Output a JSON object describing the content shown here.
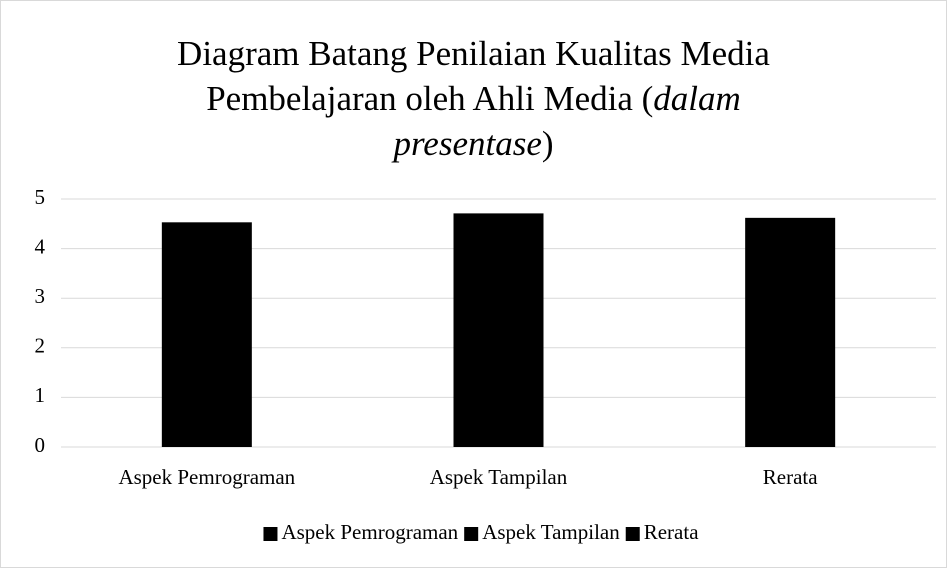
{
  "chart_data": {
    "type": "bar",
    "title": [
      "Diagram Batang Penilaian Kualitas Media Pembelajaran oleh Ahli Media (",
      "dalam presentase",
      ")"
    ],
    "title_italic": [
      false,
      true,
      false
    ],
    "categories": [
      "Aspek Pemrograman",
      "Aspek Tampilan",
      "Rerata"
    ],
    "series": [
      {
        "name": "Aspek Pemrograman",
        "color": "#000000",
        "values": [
          4.53,
          null,
          null
        ]
      },
      {
        "name": "Aspek Tampilan",
        "color": "#000000",
        "values": [
          null,
          4.71,
          null
        ]
      },
      {
        "name": "Rerata",
        "color": "#000000",
        "values": [
          null,
          null,
          4.62
        ]
      }
    ],
    "ylim": [
      0,
      5
    ],
    "yticks": [
      0,
      1,
      2,
      3,
      4,
      5
    ],
    "grid": true,
    "legend": "bottom"
  }
}
